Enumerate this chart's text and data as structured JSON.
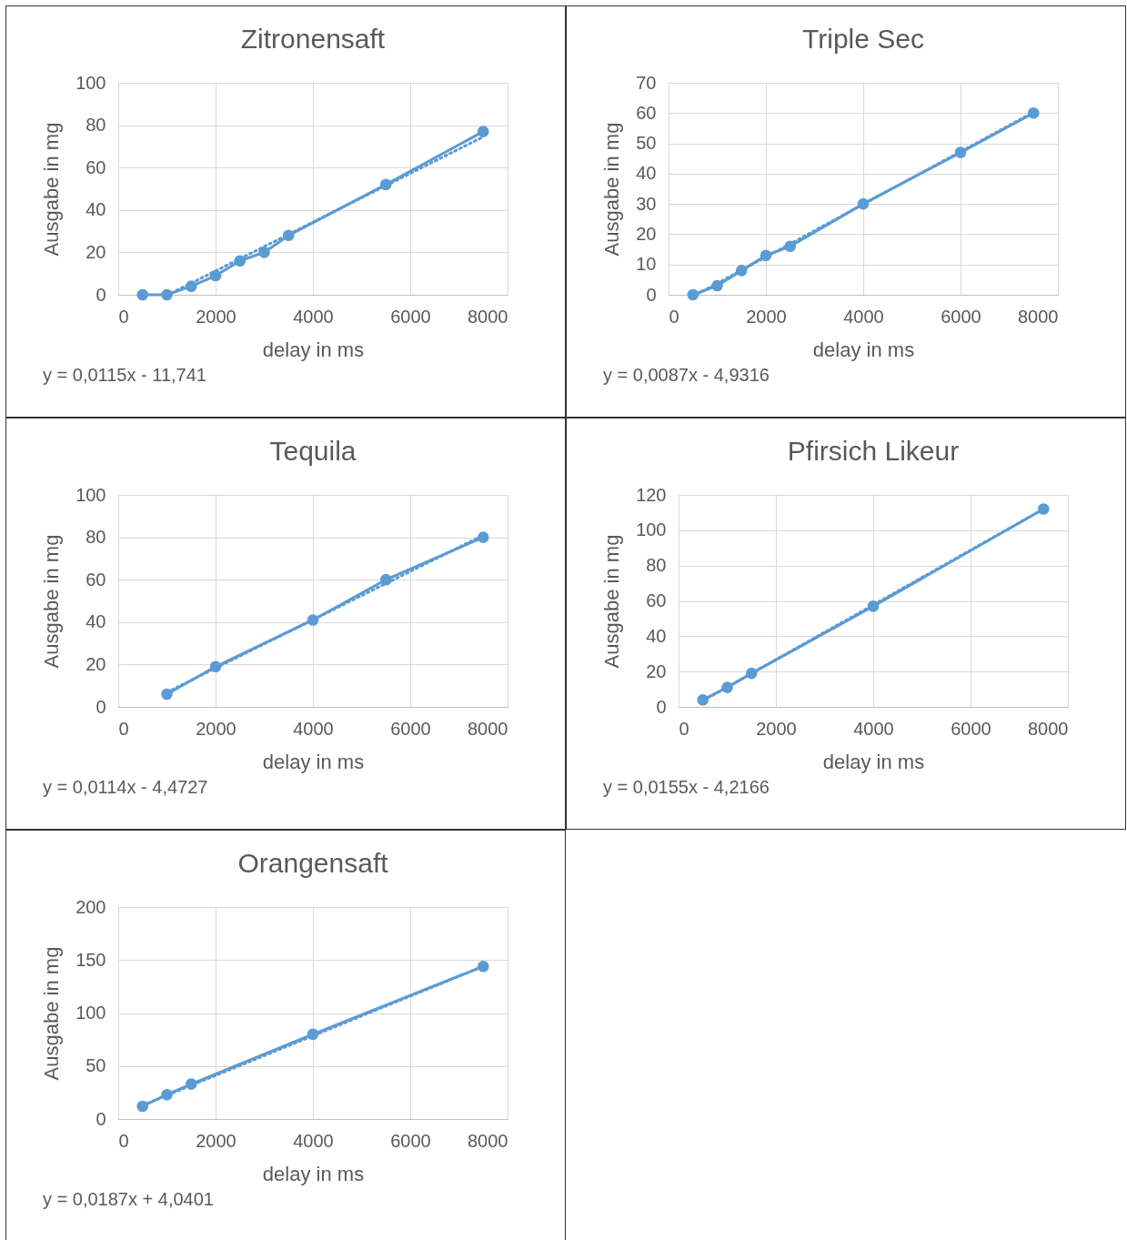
{
  "chart_data": [
    {
      "type": "line",
      "title": "Zitronensaft",
      "xlabel": "delay in ms",
      "ylabel": "Ausgabe in mg",
      "annotations": [
        "y = 0,0115x - 11,741"
      ],
      "x": [
        500,
        1000,
        1500,
        2000,
        2500,
        3000,
        3500,
        5500,
        7500
      ],
      "xlim": [
        0,
        8000
      ],
      "xticks": [
        0,
        2000,
        4000,
        6000,
        8000
      ],
      "ylim": [
        0,
        100
      ],
      "yticks": [
        0,
        20,
        40,
        60,
        80,
        100
      ],
      "grid": true,
      "series": [
        {
          "color": "#5b9bd5",
          "marker": "circle",
          "line_style": "solid",
          "values": [
            0,
            0,
            4,
            9,
            16,
            20,
            28,
            52,
            77
          ]
        },
        {
          "type": "line",
          "color": "#5b9bd5",
          "line_style": "dotted",
          "x": [
            1100,
            7500
          ],
          "values": [
            0.9,
            74.5
          ]
        }
      ]
    },
    {
      "type": "line",
      "title": "Triple Sec",
      "xlabel": "delay in ms",
      "ylabel": "Ausgabe in mg",
      "annotations": [
        "y = 0,0087x - 4,9316"
      ],
      "x": [
        500,
        1000,
        1500,
        2000,
        2500,
        4000,
        6000,
        7500
      ],
      "xlim": [
        0,
        8000
      ],
      "xticks": [
        0,
        2000,
        4000,
        6000,
        8000
      ],
      "ylim": [
        0,
        70
      ],
      "yticks": [
        0,
        10,
        20,
        30,
        40,
        50,
        60,
        70
      ],
      "grid": true,
      "series": [
        {
          "color": "#5b9bd5",
          "marker": "circle",
          "line_style": "solid",
          "values": [
            0,
            3,
            8,
            13,
            16,
            30,
            47,
            60
          ]
        },
        {
          "type": "line",
          "color": "#5b9bd5",
          "line_style": "dotted",
          "x": [
            600,
            7500
          ],
          "values": [
            0.3,
            60.3
          ]
        }
      ]
    },
    {
      "type": "line",
      "title": "Tequila",
      "xlabel": "delay in ms",
      "ylabel": "Ausgabe in mg",
      "annotations": [
        "y = 0,0114x - 4,4727"
      ],
      "x": [
        1000,
        2000,
        4000,
        5500,
        7500
      ],
      "xlim": [
        0,
        8000
      ],
      "xticks": [
        0,
        2000,
        4000,
        6000,
        8000
      ],
      "ylim": [
        0,
        100
      ],
      "yticks": [
        0,
        20,
        40,
        60,
        80,
        100
      ],
      "grid": true,
      "series": [
        {
          "color": "#5b9bd5",
          "marker": "circle",
          "line_style": "solid",
          "values": [
            6,
            19,
            41,
            60,
            80
          ]
        },
        {
          "type": "line",
          "color": "#5b9bd5",
          "line_style": "dotted",
          "x": [
            1000,
            7500
          ],
          "values": [
            6.9,
            81.0
          ]
        }
      ]
    },
    {
      "type": "line",
      "title": "Pfirsich Likeur",
      "xlabel": "delay in ms",
      "ylabel": "Ausgabe in mg",
      "annotations": [
        "y = 0,0155x - 4,2166"
      ],
      "x": [
        500,
        1000,
        1500,
        4000,
        7500
      ],
      "xlim": [
        0,
        8000
      ],
      "xticks": [
        0,
        2000,
        4000,
        6000,
        8000
      ],
      "ylim": [
        0,
        120
      ],
      "yticks": [
        0,
        20,
        40,
        60,
        80,
        100,
        120
      ],
      "grid": true,
      "series": [
        {
          "color": "#5b9bd5",
          "marker": "circle",
          "line_style": "solid",
          "values": [
            4,
            11,
            19,
            57,
            112
          ]
        },
        {
          "type": "line",
          "color": "#5b9bd5",
          "line_style": "dotted",
          "x": [
            500,
            7500
          ],
          "values": [
            3.5,
            112.0
          ]
        }
      ]
    },
    {
      "type": "line",
      "title": "Orangensaft",
      "xlabel": "delay in ms",
      "ylabel": "Ausgabe in mg",
      "annotations": [
        "y = 0,0187x + 4,0401"
      ],
      "x": [
        500,
        1000,
        1500,
        4000,
        7500
      ],
      "xlim": [
        0,
        8000
      ],
      "xticks": [
        0,
        2000,
        4000,
        6000,
        8000
      ],
      "ylim": [
        0,
        200
      ],
      "yticks": [
        0,
        50,
        100,
        150,
        200
      ],
      "grid": true,
      "series": [
        {
          "color": "#5b9bd5",
          "marker": "circle",
          "line_style": "solid",
          "values": [
            12,
            23,
            33,
            80,
            144
          ]
        },
        {
          "type": "line",
          "color": "#5b9bd5",
          "line_style": "dotted",
          "x": [
            500,
            7500
          ],
          "values": [
            13,
            144
          ]
        }
      ]
    }
  ]
}
